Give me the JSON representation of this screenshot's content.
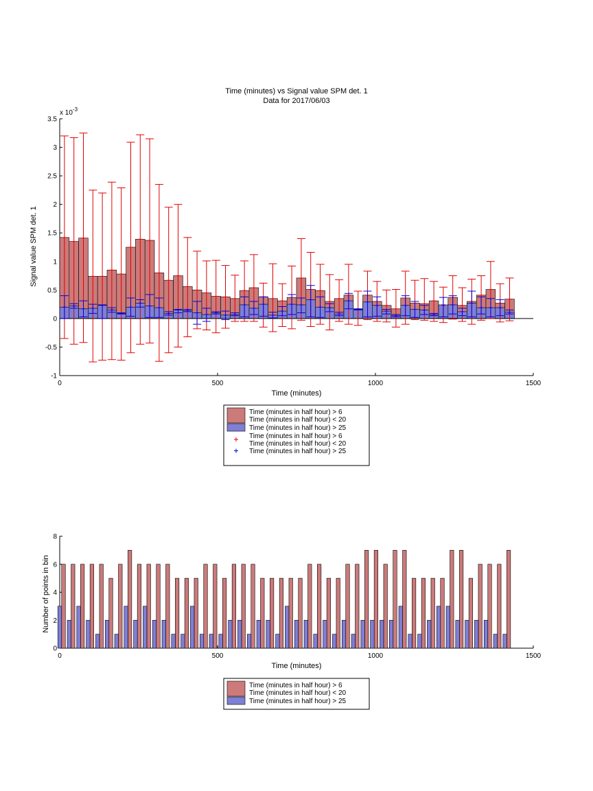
{
  "colors": {
    "red_fill": "#cc7a7a",
    "blue_fill": "#7f7fd6",
    "red_line": "#e00000",
    "blue_line": "#0000e0",
    "axis": "#000000"
  },
  "chart_data": [
    {
      "type": "bar",
      "title": "Time (minutes) vs Signal value SPM det. 1",
      "subtitle": "Data for 2017/06/03",
      "xlabel": "Time (minutes)",
      "ylabel": "Signal value SPM det. 1",
      "y_exponent_label": "x 10",
      "y_exponent": "-3",
      "xlim": [
        0,
        1500
      ],
      "ylim": [
        -1,
        3.5
      ],
      "xticks": [
        "0",
        "500",
        "1000",
        "1500"
      ],
      "yticks": [
        "-1",
        "-0.5",
        "0",
        "0.5",
        "1",
        "1.5",
        "2",
        "2.5",
        "3",
        "3.5"
      ],
      "bin_width": 30,
      "x": [
        15,
        45,
        75,
        105,
        135,
        165,
        195,
        225,
        255,
        285,
        315,
        345,
        375,
        405,
        435,
        465,
        495,
        525,
        555,
        585,
        615,
        645,
        675,
        705,
        735,
        765,
        795,
        825,
        855,
        885,
        915,
        945,
        975,
        1005,
        1035,
        1065,
        1095,
        1125,
        1155,
        1185,
        1215,
        1245,
        1275,
        1305,
        1335,
        1365,
        1395,
        1425
      ],
      "series": [
        {
          "name": "Time (minutes in half hour) > 6\nTime (minutes in half hour) < 20",
          "mean": [
            1.42,
            1.35,
            1.41,
            0.74,
            0.74,
            0.85,
            0.78,
            1.25,
            1.39,
            1.37,
            0.8,
            0.67,
            0.75,
            0.56,
            0.5,
            0.45,
            0.39,
            0.38,
            0.35,
            0.49,
            0.54,
            0.38,
            0.35,
            0.31,
            0.37,
            0.71,
            0.51,
            0.49,
            0.3,
            0.35,
            0.41,
            0.17,
            0.41,
            0.3,
            0.23,
            0.17,
            0.36,
            0.27,
            0.26,
            0.31,
            0.23,
            0.37,
            0.23,
            0.3,
            0.41,
            0.51,
            0.27,
            0.34
          ],
          "err_low": [
            -0.35,
            -0.45,
            -0.42,
            -0.76,
            -0.73,
            -0.72,
            -0.73,
            -0.6,
            -0.45,
            -0.43,
            -0.75,
            -0.6,
            -0.5,
            -0.32,
            -0.18,
            -0.2,
            -0.25,
            -0.17,
            -0.05,
            -0.05,
            -0.05,
            -0.15,
            -0.23,
            -0.14,
            -0.18,
            -0.03,
            -0.14,
            -0.1,
            -0.2,
            -0.05,
            -0.1,
            -0.12,
            -0.02,
            -0.05,
            -0.06,
            -0.15,
            -0.1,
            -0.02,
            -0.03,
            -0.05,
            -0.07,
            -0.01,
            -0.05,
            -0.1,
            -0.03,
            0.0,
            -0.06,
            -0.04
          ],
          "err_high": [
            3.2,
            3.17,
            3.25,
            2.25,
            2.2,
            2.39,
            2.29,
            3.09,
            3.22,
            3.15,
            2.35,
            1.95,
            2.0,
            1.42,
            1.18,
            1.01,
            1.02,
            0.93,
            0.76,
            1.01,
            1.12,
            0.62,
            0.96,
            0.61,
            0.92,
            1.4,
            1.16,
            0.95,
            0.77,
            0.68,
            0.95,
            0.48,
            0.83,
            0.65,
            0.5,
            0.51,
            0.83,
            0.67,
            0.7,
            0.65,
            0.55,
            0.75,
            0.54,
            0.69,
            0.75,
            1.0,
            0.61,
            0.71
          ]
        },
        {
          "name": "Time (minutes in half hour) > 25",
          "mean": [
            0.2,
            0.22,
            0.17,
            0.18,
            0.23,
            0.15,
            0.09,
            0.2,
            0.27,
            0.22,
            0.19,
            0.09,
            0.15,
            0.14,
            0.1,
            0.07,
            0.1,
            0.06,
            0.07,
            0.24,
            0.18,
            0.25,
            0.06,
            0.13,
            0.25,
            0.24,
            0.33,
            0.2,
            0.19,
            0.08,
            0.31,
            0.16,
            0.29,
            0.23,
            0.13,
            0.05,
            0.23,
            0.16,
            0.15,
            0.07,
            0.24,
            0.24,
            0.12,
            0.27,
            0.19,
            0.19,
            0.19,
            0.11
          ],
          "err_low": [
            0.0,
            0.18,
            0.03,
            0.09,
            0.0,
            0.11,
            0.08,
            0.04,
            0.2,
            0.02,
            0.02,
            0.06,
            0.1,
            0.12,
            -0.1,
            -0.05,
            0.08,
            -0.02,
            0.05,
            0.03,
            0.07,
            0.04,
            0.01,
            0.05,
            0.07,
            0.1,
            0.03,
            0.02,
            0.12,
            0.05,
            0.17,
            0.15,
            0.03,
            0.04,
            0.08,
            0.03,
            0.05,
            0.02,
            0.07,
            0.05,
            0.03,
            0.08,
            0.05,
            0.03,
            0.08,
            0.03,
            0.05,
            0.08
          ],
          "err_high": [
            0.4,
            0.26,
            0.31,
            0.25,
            0.24,
            0.19,
            0.1,
            0.36,
            0.33,
            0.42,
            0.36,
            0.12,
            0.16,
            0.16,
            0.3,
            0.18,
            0.12,
            0.13,
            0.1,
            0.38,
            0.3,
            0.38,
            0.11,
            0.21,
            0.42,
            0.36,
            0.58,
            0.38,
            0.26,
            0.11,
            0.44,
            0.17,
            0.48,
            0.38,
            0.16,
            0.07,
            0.4,
            0.3,
            0.23,
            0.09,
            0.37,
            0.4,
            0.18,
            0.48,
            0.38,
            0.35,
            0.33,
            0.15
          ]
        }
      ]
    },
    {
      "type": "bar",
      "xlabel": "Time (minutes)",
      "ylabel": "Number of points in bin",
      "xlim": [
        0,
        1500
      ],
      "ylim": [
        0,
        8
      ],
      "xticks": [
        "0",
        "500",
        "1000",
        "1500"
      ],
      "yticks": [
        "0",
        "2",
        "4",
        "6",
        "8"
      ],
      "x": [
        15,
        45,
        75,
        105,
        135,
        165,
        195,
        225,
        255,
        285,
        315,
        345,
        375,
        405,
        435,
        465,
        495,
        525,
        555,
        585,
        615,
        645,
        675,
        705,
        735,
        765,
        795,
        825,
        855,
        885,
        915,
        945,
        975,
        1005,
        1035,
        1065,
        1095,
        1125,
        1155,
        1185,
        1215,
        1245,
        1275,
        1305,
        1335,
        1365,
        1395,
        1425
      ],
      "series": [
        {
          "name": "Time (minutes in half hour) > 6\nTime (minutes in half hour) < 20",
          "values": [
            6,
            6,
            6,
            6,
            6,
            5,
            6,
            7,
            6,
            6,
            6,
            6,
            5,
            5,
            5,
            6,
            6,
            5,
            6,
            6,
            6,
            5,
            5,
            5,
            5,
            5,
            6,
            6,
            5,
            5,
            6,
            6,
            7,
            7,
            6,
            7,
            7,
            5,
            5,
            5,
            5,
            7,
            7,
            5,
            6,
            6,
            6,
            7
          ]
        },
        {
          "name": "Time (minutes in half hour) > 25",
          "values": [
            3,
            2,
            3,
            2,
            1,
            2,
            1,
            3,
            2,
            3,
            2,
            2,
            1,
            1,
            3,
            1,
            1,
            1,
            2,
            2,
            1,
            2,
            2,
            1,
            3,
            2,
            2,
            1,
            2,
            1,
            2,
            1,
            2,
            2,
            2,
            2,
            3,
            1,
            1,
            2,
            3,
            3,
            2,
            2,
            2,
            2,
            1,
            1
          ]
        }
      ]
    }
  ],
  "legends": {
    "top": [
      {
        "kind": "patch",
        "color": "red",
        "lines": [
          "Time (minutes in half hour) > 6",
          "Time (minutes in half hour) < 20"
        ]
      },
      {
        "kind": "patch",
        "color": "blue",
        "lines": [
          "Time (minutes in half hour) > 25"
        ]
      },
      {
        "kind": "marker",
        "color": "red",
        "lines": [
          "Time (minutes in half hour) > 6",
          "Time (minutes in half hour) < 20"
        ]
      },
      {
        "kind": "marker",
        "color": "blue",
        "lines": [
          "Time (minutes in half hour) > 25"
        ]
      }
    ],
    "bottom": [
      {
        "kind": "patch",
        "color": "red",
        "lines": [
          "Time (minutes in half hour) > 6",
          "Time (minutes in half hour) < 20"
        ]
      },
      {
        "kind": "patch",
        "color": "blue",
        "lines": [
          "Time (minutes in half hour) > 25"
        ]
      }
    ]
  }
}
